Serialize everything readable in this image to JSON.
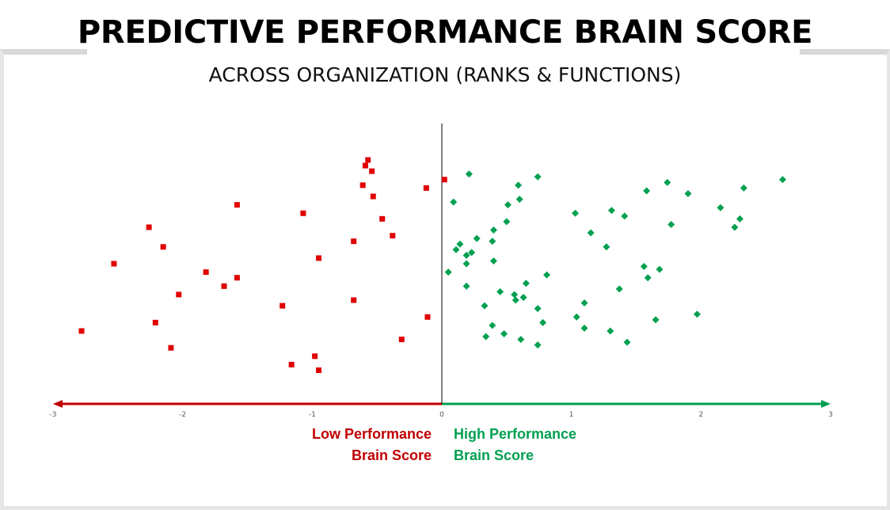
{
  "header": {
    "title": "PREDICTIVE PERFORMANCE BRAIN SCORE",
    "subtitle": "ACROSS ORGANIZATION (RANKS & FUNCTIONS)"
  },
  "labels": {
    "low_line1": "Low Performance",
    "low_line2": "Brain Score",
    "high_line1": "High Performance",
    "high_line2": "Brain Score"
  },
  "colors": {
    "low": "#e00000",
    "high": "#00a050",
    "low_arrow": "#c00000",
    "high_arrow": "#00a050"
  },
  "chart_data": {
    "type": "scatter",
    "title": "PREDICTIVE PERFORMANCE BRAIN SCORE",
    "subtitle": "ACROSS ORGANIZATION (RANKS & FUNCTIONS)",
    "xlim": [
      -3,
      3
    ],
    "ylim": [
      0,
      1
    ],
    "x_ticks": [
      "-3",
      "-2",
      "-1",
      "0",
      "1",
      "2",
      "3"
    ],
    "grid": false,
    "series": [
      {
        "marker": "square",
        "color": "#e00000",
        "points": [
          [
            -0.57,
            0.87
          ],
          [
            -0.59,
            0.85
          ],
          [
            -0.54,
            0.83
          ],
          [
            -0.61,
            0.78
          ],
          [
            -0.53,
            0.74
          ],
          [
            -0.12,
            0.77
          ],
          [
            0.02,
            0.8
          ],
          [
            -1.58,
            0.71
          ],
          [
            -1.07,
            0.68
          ],
          [
            -0.46,
            0.66
          ],
          [
            -0.38,
            0.6
          ],
          [
            -2.26,
            0.63
          ],
          [
            -0.68,
            0.58
          ],
          [
            -2.15,
            0.56
          ],
          [
            -0.95,
            0.52
          ],
          [
            -2.53,
            0.5
          ],
          [
            -1.82,
            0.47
          ],
          [
            -1.58,
            0.45
          ],
          [
            -1.68,
            0.42
          ],
          [
            -2.03,
            0.39
          ],
          [
            -0.68,
            0.37
          ],
          [
            -1.23,
            0.35
          ],
          [
            -0.11,
            0.31
          ],
          [
            -2.21,
            0.29
          ],
          [
            -2.78,
            0.26
          ],
          [
            -0.31,
            0.23
          ],
          [
            -2.09,
            0.2
          ],
          [
            -0.98,
            0.17
          ],
          [
            -1.16,
            0.14
          ],
          [
            -0.95,
            0.12
          ]
        ]
      },
      {
        "marker": "diamond",
        "color": "#00a050",
        "points": [
          [
            0.21,
            0.82
          ],
          [
            0.74,
            0.81
          ],
          [
            2.63,
            0.8
          ],
          [
            1.74,
            0.79
          ],
          [
            0.59,
            0.78
          ],
          [
            2.33,
            0.77
          ],
          [
            1.58,
            0.76
          ],
          [
            1.9,
            0.75
          ],
          [
            0.6,
            0.73
          ],
          [
            0.09,
            0.72
          ],
          [
            0.51,
            0.71
          ],
          [
            2.15,
            0.7
          ],
          [
            1.31,
            0.69
          ],
          [
            1.03,
            0.68
          ],
          [
            1.41,
            0.67
          ],
          [
            2.3,
            0.66
          ],
          [
            0.5,
            0.65
          ],
          [
            1.77,
            0.64
          ],
          [
            2.26,
            0.63
          ],
          [
            0.4,
            0.62
          ],
          [
            1.15,
            0.61
          ],
          [
            0.27,
            0.59
          ],
          [
            0.39,
            0.58
          ],
          [
            0.14,
            0.57
          ],
          [
            1.27,
            0.56
          ],
          [
            0.11,
            0.55
          ],
          [
            0.23,
            0.54
          ],
          [
            0.19,
            0.53
          ],
          [
            0.4,
            0.51
          ],
          [
            0.19,
            0.5
          ],
          [
            1.56,
            0.49
          ],
          [
            1.68,
            0.48
          ],
          [
            0.05,
            0.47
          ],
          [
            0.81,
            0.46
          ],
          [
            1.59,
            0.45
          ],
          [
            0.65,
            0.43
          ],
          [
            0.19,
            0.42
          ],
          [
            1.37,
            0.41
          ],
          [
            0.45,
            0.4
          ],
          [
            0.56,
            0.39
          ],
          [
            0.63,
            0.38
          ],
          [
            0.57,
            0.37
          ],
          [
            1.1,
            0.36
          ],
          [
            0.33,
            0.35
          ],
          [
            0.74,
            0.34
          ],
          [
            1.97,
            0.32
          ],
          [
            1.04,
            0.31
          ],
          [
            1.65,
            0.3
          ],
          [
            0.78,
            0.29
          ],
          [
            0.39,
            0.28
          ],
          [
            1.1,
            0.27
          ],
          [
            1.3,
            0.26
          ],
          [
            0.48,
            0.25
          ],
          [
            0.34,
            0.24
          ],
          [
            0.61,
            0.23
          ],
          [
            1.43,
            0.22
          ],
          [
            0.74,
            0.21
          ]
        ]
      }
    ]
  }
}
